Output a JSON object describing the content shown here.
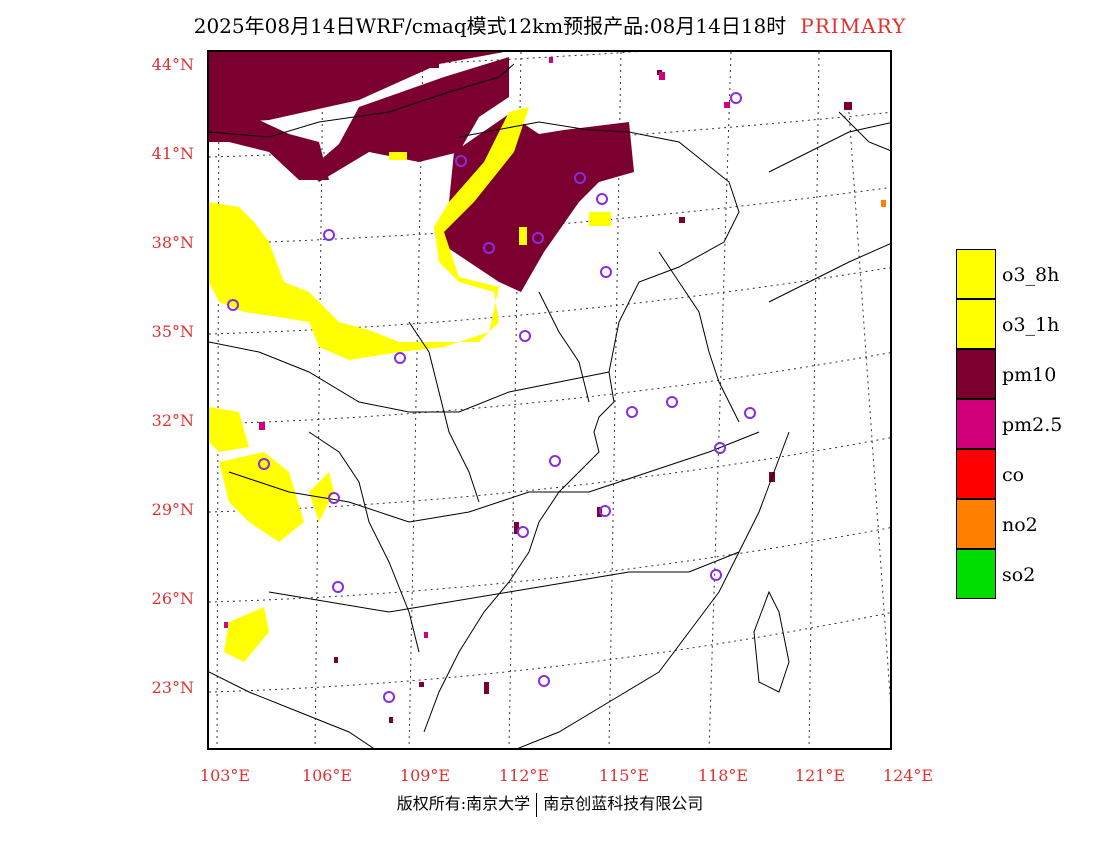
{
  "title": {
    "main": "2025年08月14日WRF/cmaq模式12km预报产品:08月14日18时",
    "primary": "PRIMARY"
  },
  "map": {
    "lat_labels": [
      "44°N",
      "41°N",
      "38°N",
      "35°N",
      "32°N",
      "29°N",
      "26°N",
      "23°N"
    ],
    "lon_labels": [
      "103°E",
      "106°E",
      "109°E",
      "112°E",
      "115°E",
      "118°E",
      "121°E",
      "124°E"
    ],
    "colors": {
      "o3": "#ffff00",
      "pm10": "#7b0030",
      "pm25": "#d0007a",
      "co": "#ff0000",
      "no2": "#ff7f00",
      "so2": "#00dd00",
      "station_ring": "#8a2be2"
    }
  },
  "legend": [
    {
      "label": "o3_8h",
      "color": "#ffff00"
    },
    {
      "label": "o3_1h",
      "color": "#ffff00"
    },
    {
      "label": "pm10",
      "color": "#7b0030"
    },
    {
      "label": "pm2.5",
      "color": "#d0007a"
    },
    {
      "label": "co",
      "color": "#ff0000"
    },
    {
      "label": "no2",
      "color": "#ff7f00"
    },
    {
      "label": "so2",
      "color": "#00dd00"
    }
  ],
  "footer": {
    "left": "版权所有:南京大学",
    "right": "南京创蓝科技有限公司"
  }
}
